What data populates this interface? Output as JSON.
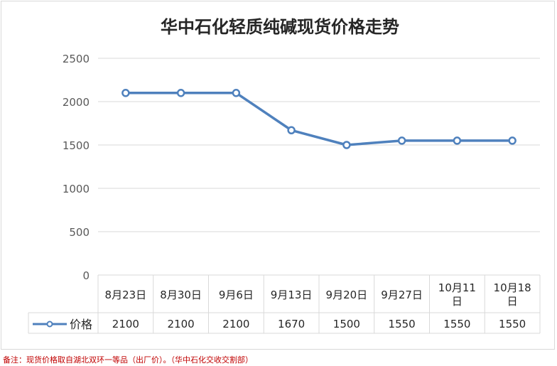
{
  "chart_data": {
    "type": "line",
    "title": "华中石化轻质纯碱现货价格走势",
    "categories": [
      "8月23日",
      "8月30日",
      "9月6日",
      "9月13日",
      "9月20日",
      "9月27日",
      "10月11日",
      "10月18日"
    ],
    "series": [
      {
        "name": "价格",
        "values": [
          2100,
          2100,
          2100,
          1670,
          1500,
          1550,
          1550,
          1550
        ]
      }
    ],
    "yticks": [
      "0",
      "500",
      "1000",
      "1500",
      "2000",
      "2500"
    ],
    "ylim": [
      0,
      2500
    ],
    "grid": true,
    "data_table": true,
    "colors": {
      "line": "#4f81bd",
      "grid": "#d9d9d9",
      "axis_text": "#595959"
    }
  },
  "note": "备注：现货价格取自湖北双环一等品（出厂价）。（华中石化交收交割部）"
}
